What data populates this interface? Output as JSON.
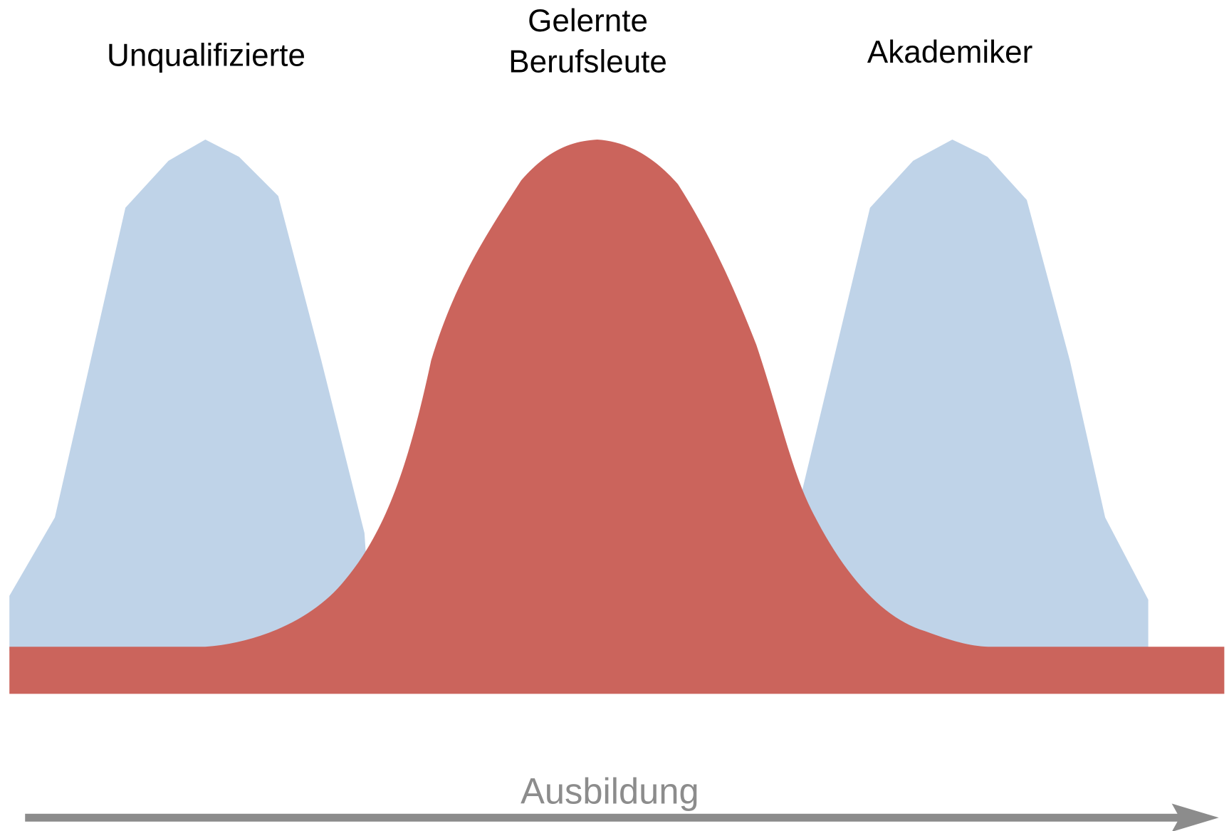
{
  "groups": [
    {
      "label": [
        "Unqualifizierte"
      ]
    },
    {
      "label": [
        "Gelernte",
        "Berufsleute"
      ]
    },
    {
      "label": [
        "Akademiker"
      ]
    }
  ],
  "axis_label": "Ausbildung"
}
